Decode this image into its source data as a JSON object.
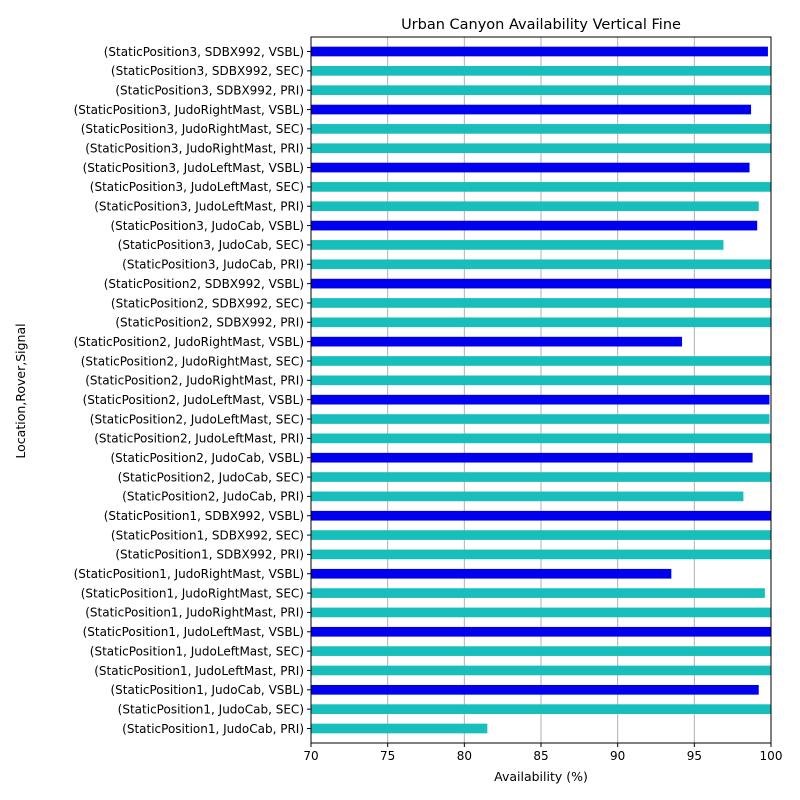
{
  "chart_data": {
    "type": "bar",
    "orientation": "horizontal",
    "title": "Urban Canyon Availability Vertical Fine",
    "xlabel": "Availability (%)",
    "ylabel": "Location,Rover,Signal",
    "xlim": [
      70,
      100
    ],
    "xticks": [
      70,
      75,
      80,
      85,
      90,
      95,
      100
    ],
    "grid": "vertical",
    "colors": {
      "PRI": "#17bebb",
      "SEC": "#17bebb",
      "VSBL": "#0000ee"
    },
    "categories": [
      "(StaticPosition1, JudoCab, PRI)",
      "(StaticPosition1, JudoCab, SEC)",
      "(StaticPosition1, JudoCab, VSBL)",
      "(StaticPosition1, JudoLeftMast, PRI)",
      "(StaticPosition1, JudoLeftMast, SEC)",
      "(StaticPosition1, JudoLeftMast, VSBL)",
      "(StaticPosition1, JudoRightMast, PRI)",
      "(StaticPosition1, JudoRightMast, SEC)",
      "(StaticPosition1, JudoRightMast, VSBL)",
      "(StaticPosition1, SDBX992, PRI)",
      "(StaticPosition1, SDBX992, SEC)",
      "(StaticPosition1, SDBX992, VSBL)",
      "(StaticPosition2, JudoCab, PRI)",
      "(StaticPosition2, JudoCab, SEC)",
      "(StaticPosition2, JudoCab, VSBL)",
      "(StaticPosition2, JudoLeftMast, PRI)",
      "(StaticPosition2, JudoLeftMast, SEC)",
      "(StaticPosition2, JudoLeftMast, VSBL)",
      "(StaticPosition2, JudoRightMast, PRI)",
      "(StaticPosition2, JudoRightMast, SEC)",
      "(StaticPosition2, JudoRightMast, VSBL)",
      "(StaticPosition2, SDBX992, PRI)",
      "(StaticPosition2, SDBX992, SEC)",
      "(StaticPosition2, SDBX992, VSBL)",
      "(StaticPosition3, JudoCab, PRI)",
      "(StaticPosition3, JudoCab, SEC)",
      "(StaticPosition3, JudoCab, VSBL)",
      "(StaticPosition3, JudoLeftMast, PRI)",
      "(StaticPosition3, JudoLeftMast, SEC)",
      "(StaticPosition3, JudoLeftMast, VSBL)",
      "(StaticPosition3, JudoRightMast, PRI)",
      "(StaticPosition3, JudoRightMast, SEC)",
      "(StaticPosition3, JudoRightMast, VSBL)",
      "(StaticPosition3, SDBX992, PRI)",
      "(StaticPosition3, SDBX992, SEC)",
      "(StaticPosition3, SDBX992, VSBL)"
    ],
    "values": [
      81.5,
      100.0,
      99.2,
      100.0,
      100.0,
      100.0,
      100.0,
      99.6,
      93.5,
      100.0,
      100.0,
      100.0,
      98.2,
      100.0,
      98.8,
      100.0,
      99.9,
      99.9,
      100.0,
      100.0,
      94.2,
      100.0,
      100.0,
      100.0,
      100.0,
      96.9,
      99.1,
      99.2,
      100.0,
      98.6,
      100.0,
      100.0,
      98.7,
      100.0,
      100.0,
      99.8
    ]
  }
}
